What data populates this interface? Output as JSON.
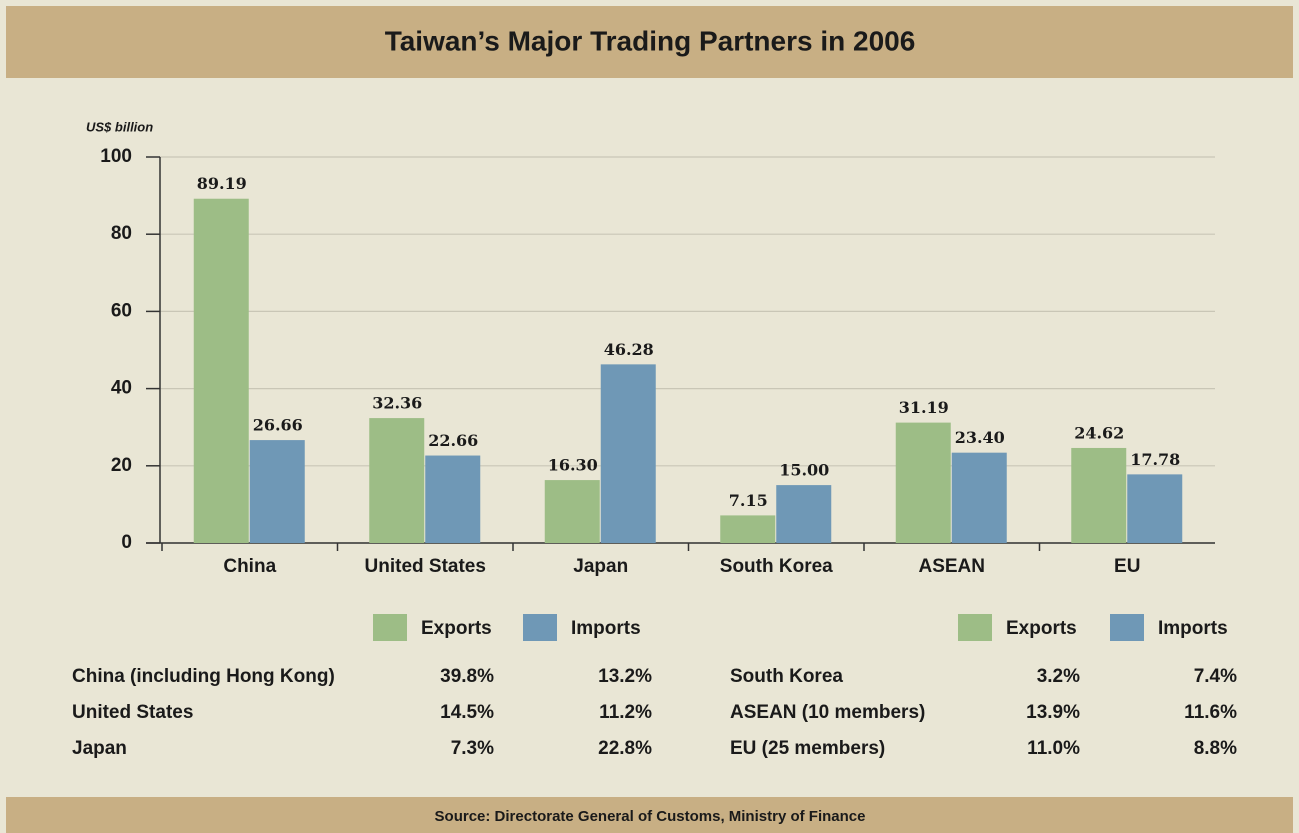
{
  "header": {
    "title": "Taiwan’s Major Trading Partners in 2006"
  },
  "chart_data": {
    "type": "bar",
    "y_label": "US$ billion",
    "categories": [
      "China",
      "United States",
      "Japan",
      "South Korea",
      "ASEAN",
      "EU"
    ],
    "series": [
      {
        "name": "Exports",
        "color": "#9dbd86",
        "values": [
          89.19,
          32.36,
          16.3,
          7.15,
          31.19,
          24.62
        ],
        "value_labels": [
          "89.19",
          "32.36",
          "16.30",
          "7.15",
          "31.19",
          "24.62"
        ]
      },
      {
        "name": "Imports",
        "color": "#6f98b6",
        "values": [
          26.66,
          22.66,
          46.28,
          15.0,
          23.4,
          17.78
        ],
        "value_labels": [
          "26.66",
          "22.66",
          "46.28",
          "15.00",
          "23.40",
          "17.78"
        ]
      }
    ],
    "ylim": [
      0,
      100
    ],
    "yticks": [
      0,
      20,
      40,
      60,
      80,
      100
    ],
    "grid": true
  },
  "share_table": {
    "left": [
      [
        "China (including Hong Kong)",
        "39.8%",
        "13.2%"
      ],
      [
        "United States",
        "14.5%",
        "11.2%"
      ],
      [
        "Japan",
        "7.3%",
        "22.8%"
      ]
    ],
    "right": [
      [
        "South Korea",
        "3.2%",
        "7.4%"
      ],
      [
        "ASEAN (10 members)",
        "13.9%",
        "11.6%"
      ],
      [
        "EU (25 members)",
        "11.0%",
        "8.8%"
      ]
    ]
  },
  "footer": {
    "source": "Source: Directorate General of Customs, Ministry of Finance"
  }
}
